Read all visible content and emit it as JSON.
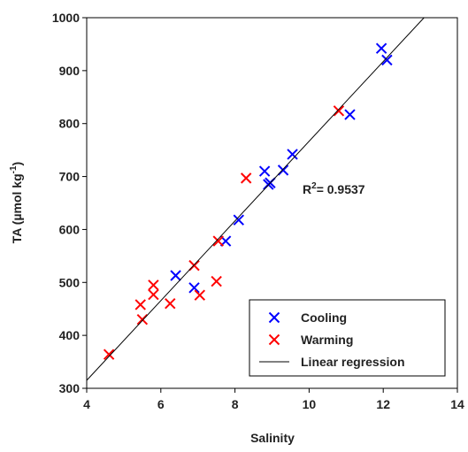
{
  "chart_data": {
    "type": "scatter",
    "xlabel": "Salinity",
    "ylabel": {
      "main": "TA (µmol kg",
      "sup": "-1",
      "end": ")"
    },
    "annotation": {
      "main": "R",
      "sup": "2",
      "end": "= 0.9537"
    },
    "xlim": [
      4,
      14
    ],
    "xticks": [
      4,
      6,
      8,
      10,
      12,
      14
    ],
    "ylim": [
      300,
      1000
    ],
    "yticks": [
      300,
      400,
      500,
      600,
      700,
      800,
      900,
      1000
    ],
    "grid": false,
    "legend": "lower right",
    "series": [
      {
        "name": "Cooling",
        "color": "#0000ff",
        "x": [
          11.95,
          12.1,
          11.1,
          9.55,
          9.3,
          8.8,
          8.9,
          8.95,
          8.1,
          7.75,
          6.4,
          6.9
        ],
        "values": [
          942,
          920,
          817,
          742,
          712,
          710,
          685,
          688,
          618,
          578,
          513,
          490
        ]
      },
      {
        "name": "Warming",
        "color": "#ff0000",
        "x": [
          10.8,
          8.3,
          7.55,
          7.5,
          6.9,
          7.05,
          5.8,
          5.8,
          5.45,
          6.25,
          5.5,
          4.6
        ],
        "values": [
          824,
          697,
          578,
          502,
          532,
          476,
          495,
          477,
          458,
          460,
          430,
          364
        ]
      },
      {
        "name": "Linear regression",
        "color": "#000000",
        "line": true,
        "x": [
          4,
          13.1
        ],
        "values": [
          315,
          1000
        ]
      }
    ]
  }
}
